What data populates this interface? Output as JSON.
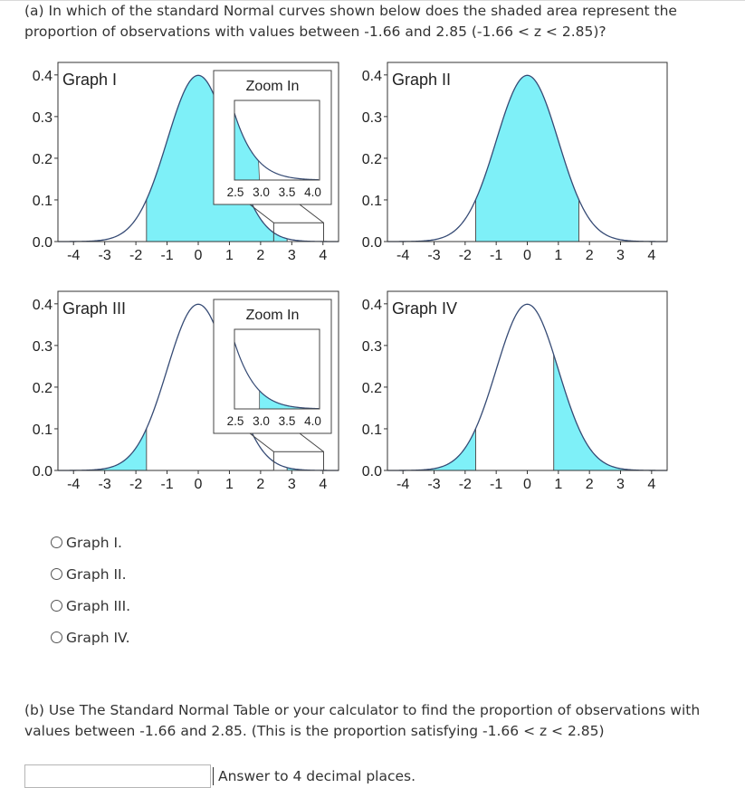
{
  "question_a": "(a) In which of the standard Normal curves shown below does the shaded area represent the proportion of observations with values between -1.66 and 2.85 (-1.66 < z < 2.85)?",
  "question_b": "(b) Use The Standard Normal Table or your calculator to find the proportion of observations with values between -1.66 and 2.85. (This is the proportion satisfying -1.66 < z < 2.85)",
  "zoom_label": "Zoom In",
  "zoom_ticks": [
    "2.5",
    "3.0",
    "3.5",
    "4.0"
  ],
  "x_ticks": [
    "-4",
    "-3",
    "-2",
    "-1",
    "0",
    "1",
    "2",
    "3",
    "4"
  ],
  "y_ticks": [
    "0.0",
    "0.1",
    "0.2",
    "0.3",
    "0.4"
  ],
  "chart_data": [
    {
      "type": "area",
      "title": "Graph I",
      "curve": "standard normal density",
      "shaded_from": -1.66,
      "shaded_to": 2.85,
      "xlim": [
        -4,
        4
      ],
      "ylim": [
        0,
        0.4
      ],
      "has_zoom": true
    },
    {
      "type": "area",
      "title": "Graph II",
      "curve": "standard normal density",
      "shaded_from": -1.66,
      "shaded_to": 1.66,
      "xlim": [
        -4,
        4
      ],
      "ylim": [
        0,
        0.4
      ],
      "has_zoom": false
    },
    {
      "type": "area",
      "title": "Graph III",
      "curve": "standard normal density",
      "shaded": [
        [
          -4,
          -1.66
        ],
        [
          2.85,
          4
        ]
      ],
      "xlim": [
        -4,
        4
      ],
      "ylim": [
        0,
        0.4
      ],
      "has_zoom": true
    },
    {
      "type": "area",
      "title": "Graph IV",
      "curve": "standard normal density",
      "shaded": [
        [
          -4,
          -1.66
        ],
        [
          0.85,
          4
        ]
      ],
      "xlim": [
        -4,
        4
      ],
      "ylim": [
        0,
        0.4
      ],
      "has_zoom": false
    }
  ],
  "options": [
    "Graph I.",
    "Graph II.",
    "Graph III.",
    "Graph IV."
  ],
  "answer_value": "",
  "answer_hint": "Answer to 4 decimal places.",
  "colors": {
    "fill": "#7ef0f8",
    "curve": "#364b75",
    "axis": "#333333"
  }
}
